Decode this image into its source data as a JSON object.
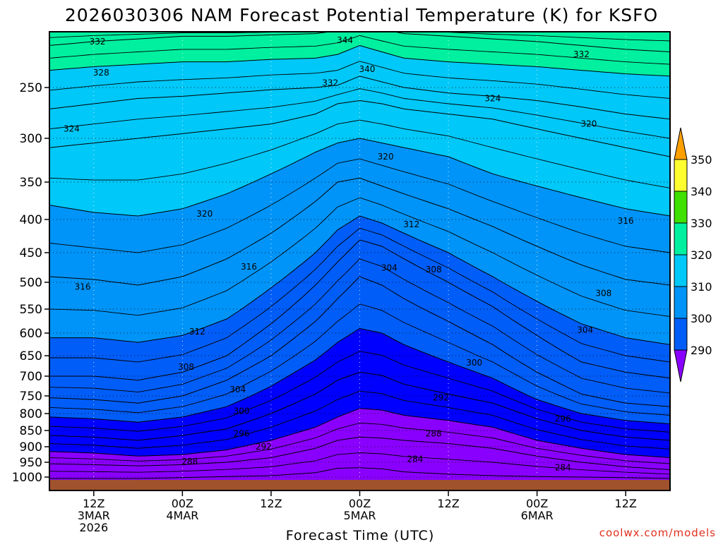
{
  "chart_data": {
    "type": "heatmap",
    "title": "2026030306 NAM Forecast Potential Temperature (K) for KSFO",
    "xlabel": "Forecast Time (UTC)",
    "ylabel": "",
    "credit": "coolwx.com/models",
    "y_ticks": [
      250,
      300,
      350,
      400,
      450,
      500,
      550,
      600,
      650,
      700,
      750,
      800,
      850,
      900,
      950,
      1000
    ],
    "ylim": [
      1000,
      200
    ],
    "xlim": [
      6,
      90
    ],
    "x_ticks": [
      {
        "hour": 12,
        "lines": [
          "12Z",
          "3MAR",
          "2026"
        ]
      },
      {
        "hour": 24,
        "lines": [
          "00Z",
          "4MAR"
        ]
      },
      {
        "hour": 36,
        "lines": [
          "12Z"
        ]
      },
      {
        "hour": 48,
        "lines": [
          "00Z",
          "5MAR"
        ]
      },
      {
        "hour": 60,
        "lines": [
          "12Z"
        ]
      },
      {
        "hour": 72,
        "lines": [
          "00Z",
          "6MAR"
        ]
      },
      {
        "hour": 84,
        "lines": [
          "12Z"
        ]
      }
    ],
    "colorbar": {
      "levels": [
        290,
        300,
        310,
        320,
        330,
        340,
        350
      ],
      "labels": [
        "290",
        "300",
        "310",
        "320",
        "330",
        "340",
        "350"
      ],
      "colors": [
        "#8a00ff",
        "#0000ff",
        "#005df8",
        "#0094f8",
        "#00c8f8",
        "#00f0a0",
        "#40e000",
        "#ffff30",
        "#ffa000"
      ]
    },
    "hours": [
      6,
      12,
      18,
      24,
      30,
      36,
      42,
      45,
      48,
      51,
      54,
      60,
      66,
      72,
      78,
      84,
      90
    ],
    "isentrope_levels": [
      284,
      288,
      292,
      296,
      300,
      304,
      308,
      312,
      316,
      320,
      324,
      328,
      332,
      336,
      340,
      344
    ],
    "isentrope_pressure": [
      [
        1005,
        1005,
        1005,
        1002,
        998,
        995,
        985,
        970,
        968,
        972,
        982,
        990,
        995,
        998,
        1000,
        1002,
        1005
      ],
      [
        955,
        958,
        962,
        958,
        950,
        935,
        905,
        880,
        870,
        873,
        880,
        890,
        905,
        930,
        950,
        965,
        975
      ],
      [
        915,
        920,
        930,
        925,
        910,
        880,
        840,
        810,
        785,
        790,
        805,
        820,
        840,
        880,
        905,
        925,
        935
      ],
      [
        865,
        870,
        880,
        865,
        845,
        800,
        745,
        710,
        690,
        698,
        720,
        745,
        770,
        815,
        850,
        870,
        880
      ],
      [
        810,
        815,
        825,
        810,
        780,
        725,
        660,
        620,
        590,
        600,
        625,
        665,
        705,
        760,
        800,
        820,
        830
      ],
      [
        755,
        760,
        770,
        750,
        710,
        650,
        575,
        530,
        490,
        505,
        530,
        575,
        625,
        690,
        745,
        770,
        780
      ],
      [
        700,
        700,
        710,
        690,
        650,
        580,
        505,
        465,
        430,
        440,
        460,
        500,
        545,
        605,
        665,
        690,
        705
      ],
      [
        610,
        610,
        620,
        605,
        570,
        510,
        450,
        415,
        395,
        405,
        420,
        450,
        490,
        535,
        580,
        610,
        625
      ],
      [
        490,
        495,
        505,
        490,
        460,
        420,
        375,
        350,
        345,
        355,
        365,
        385,
        410,
        440,
        470,
        495,
        505
      ],
      [
        380,
        390,
        395,
        385,
        365,
        340,
        315,
        305,
        300,
        305,
        310,
        320,
        340,
        355,
        370,
        385,
        395
      ],
      [
        310,
        305,
        300,
        295,
        290,
        285,
        275,
        265,
        262,
        265,
        270,
        275,
        280,
        290,
        300,
        310,
        320
      ],
      [
        270,
        265,
        260,
        258,
        255,
        252,
        250,
        248,
        240,
        245,
        250,
        255,
        258,
        262,
        268,
        275,
        280
      ],
      [
        235,
        232,
        230,
        228,
        228,
        226,
        225,
        222,
        215,
        220,
        225,
        228,
        230,
        232,
        235,
        238,
        240
      ],
      [
        215,
        212,
        210,
        208,
        208,
        207,
        206,
        204,
        200,
        203,
        206,
        208,
        210,
        212,
        215,
        218,
        220
      ],
      [
        203,
        203,
        203,
        203,
        203,
        203,
        202,
        200,
        190,
        195,
        200,
        202,
        203,
        203,
        203,
        203,
        203
      ],
      [
        190,
        190,
        190,
        190,
        190,
        190,
        190,
        188,
        185,
        188,
        190,
        190,
        190,
        190,
        190,
        190,
        190
      ]
    ],
    "contour_labels": [
      {
        "value": "332",
        "hour": 12.5,
        "p": 212
      },
      {
        "value": "344",
        "hour": 46.0,
        "p": 211
      },
      {
        "value": "332",
        "hour": 78.0,
        "p": 222
      },
      {
        "value": "328",
        "hour": 13.0,
        "p": 237
      },
      {
        "value": "340",
        "hour": 49.0,
        "p": 234
      },
      {
        "value": "332",
        "hour": 44.0,
        "p": 246
      },
      {
        "value": "324",
        "hour": 66.0,
        "p": 260
      },
      {
        "value": "324",
        "hour": 9.0,
        "p": 290
      },
      {
        "value": "320",
        "hour": 79.0,
        "p": 285
      },
      {
        "value": "320",
        "hour": 51.5,
        "p": 320
      },
      {
        "value": "320",
        "hour": 27.0,
        "p": 392
      },
      {
        "value": "312",
        "hour": 55.0,
        "p": 407
      },
      {
        "value": "316",
        "hour": 84.0,
        "p": 402
      },
      {
        "value": "316",
        "hour": 33.0,
        "p": 473
      },
      {
        "value": "304",
        "hour": 52.0,
        "p": 475
      },
      {
        "value": "308",
        "hour": 58.0,
        "p": 478
      },
      {
        "value": "316",
        "hour": 10.5,
        "p": 508
      },
      {
        "value": "308",
        "hour": 81.0,
        "p": 520
      },
      {
        "value": "304",
        "hour": 78.5,
        "p": 593
      },
      {
        "value": "312",
        "hour": 26.0,
        "p": 597
      },
      {
        "value": "300",
        "hour": 63.5,
        "p": 667
      },
      {
        "value": "308",
        "hour": 24.5,
        "p": 677
      },
      {
        "value": "304",
        "hour": 31.5,
        "p": 734
      },
      {
        "value": "292",
        "hour": 59.0,
        "p": 755
      },
      {
        "value": "300",
        "hour": 32.0,
        "p": 793
      },
      {
        "value": "296",
        "hour": 75.5,
        "p": 815
      },
      {
        "value": "296",
        "hour": 32.0,
        "p": 860
      },
      {
        "value": "288",
        "hour": 58.0,
        "p": 860
      },
      {
        "value": "292",
        "hour": 35.0,
        "p": 900
      },
      {
        "value": "284",
        "hour": 55.5,
        "p": 940
      },
      {
        "value": "288",
        "hour": 25.0,
        "p": 948
      },
      {
        "value": "284",
        "hour": 75.5,
        "p": 968
      }
    ],
    "ground_color": "#a0522d"
  }
}
